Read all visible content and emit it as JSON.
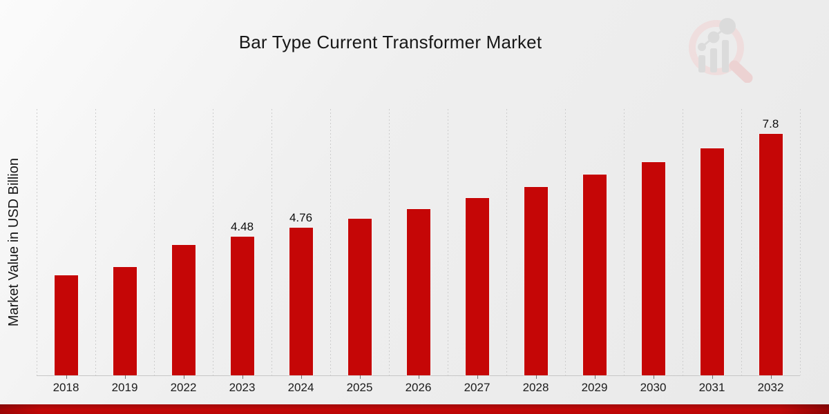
{
  "chart_data": {
    "type": "bar",
    "title": "Bar Type Current Transformer Market",
    "xlabel": "",
    "ylabel": "Market Value in USD Billion",
    "categories": [
      "2018",
      "2019",
      "2022",
      "2023",
      "2024",
      "2025",
      "2026",
      "2027",
      "2028",
      "2029",
      "2030",
      "2031",
      "2032"
    ],
    "values": [
      3.22,
      3.49,
      4.2,
      4.48,
      4.76,
      5.06,
      5.38,
      5.72,
      6.08,
      6.48,
      6.88,
      7.33,
      7.8
    ],
    "value_labels": {
      "2023": "4.48",
      "2024": "4.76",
      "2032": "7.8"
    },
    "ylim": [
      0,
      8.6
    ],
    "grid": "vertical-dashed",
    "legend_position": "none",
    "bar_color": "#c50606",
    "value_label_color": "#0d0d0d",
    "axis_label_color": "#1b1b1b"
  },
  "watermark": {
    "icon": "magnifier-bar-chart-logo",
    "ring_color": "#f0d9d9",
    "handle_color": "#eccaca",
    "bars_color": "#d6d6d6"
  },
  "footer": {
    "accent_band_color": "#bb0707"
  }
}
